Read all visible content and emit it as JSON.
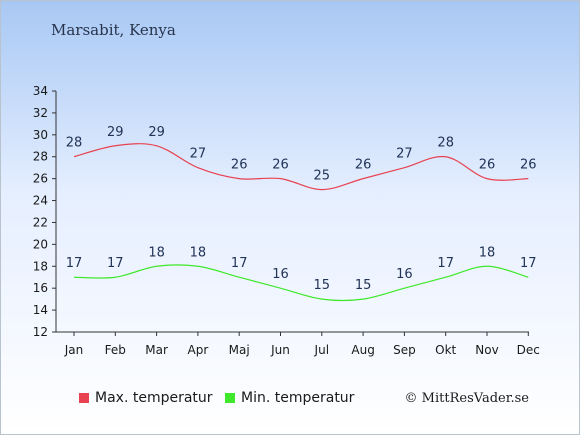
{
  "chart_data": {
    "type": "line",
    "title": "Marsabit, Kenya",
    "categories": [
      "Jan",
      "Feb",
      "Mar",
      "Apr",
      "Maj",
      "Jun",
      "Jul",
      "Aug",
      "Sep",
      "Okt",
      "Nov",
      "Dec"
    ],
    "ylim": [
      12,
      34
    ],
    "yticks": [
      12,
      14,
      16,
      18,
      20,
      22,
      24,
      26,
      28,
      30,
      32,
      34
    ],
    "grid": false,
    "legend_position": "bottom",
    "series": [
      {
        "name": "Max. temperatur",
        "color": "#e8414f",
        "values": [
          28,
          29,
          29,
          27,
          26,
          26,
          25,
          26,
          27,
          28,
          26,
          26
        ]
      },
      {
        "name": "Min. temperatur",
        "color": "#3fe82a",
        "values": [
          17,
          17,
          18,
          18,
          17,
          16,
          15,
          15,
          16,
          17,
          18,
          17
        ]
      }
    ]
  },
  "credit": "© MittResVader.se"
}
